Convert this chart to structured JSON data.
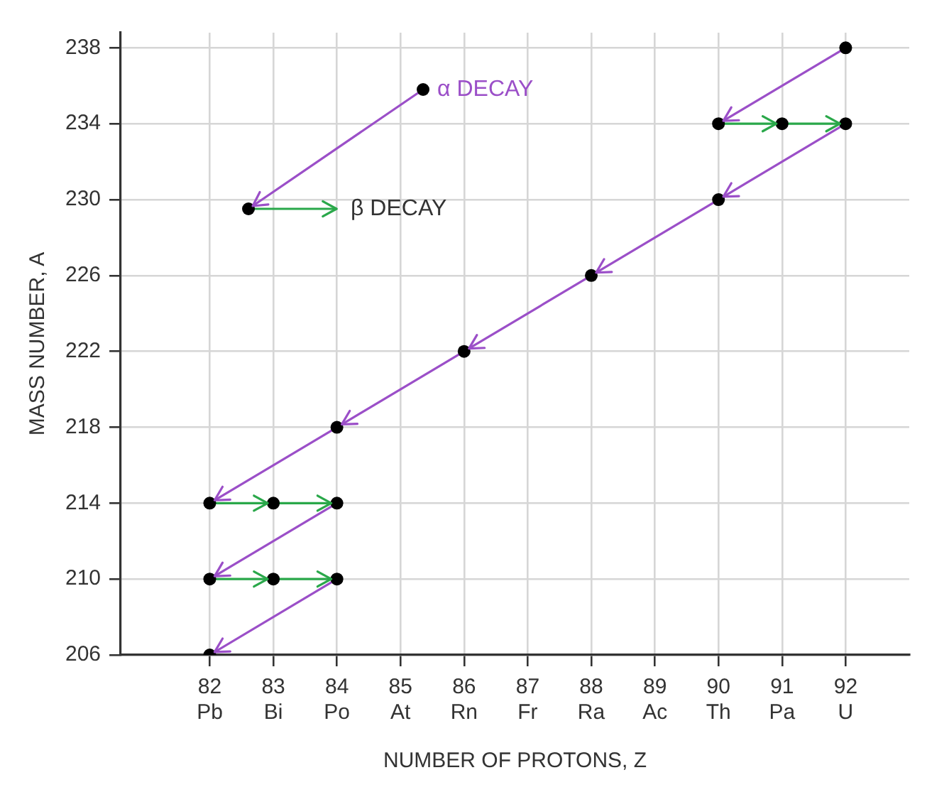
{
  "chart_data": {
    "type": "scatter",
    "xlabel": "NUMBER OF PROTONS, Z",
    "ylabel": "MASS NUMBER, A",
    "xlim": [
      80.6,
      93
    ],
    "ylim": [
      206,
      238.8
    ],
    "xticks": [
      {
        "value": 82,
        "label": "82\nPb"
      },
      {
        "value": 83,
        "label": "83\nBi"
      },
      {
        "value": 84,
        "label": "84\nPo"
      },
      {
        "value": 85,
        "label": "85\nAt"
      },
      {
        "value": 86,
        "label": "86\nRn"
      },
      {
        "value": 87,
        "label": "87\nFr"
      },
      {
        "value": 88,
        "label": "88\nRa"
      },
      {
        "value": 89,
        "label": "89\nAc"
      },
      {
        "value": 90,
        "label": "90\nTh"
      },
      {
        "value": 91,
        "label": "91\nPa"
      },
      {
        "value": 92,
        "label": "92\nU"
      }
    ],
    "yticks": [
      206,
      210,
      214,
      218,
      222,
      226,
      230,
      234,
      238
    ],
    "grid": true,
    "legend": "top left",
    "series": [
      {
        "type": "line",
        "name": "α DECAY",
        "color": "#9b4fc8",
        "marker": "none",
        "x": [
          92,
          90
        ],
        "values": [
          238,
          234
        ]
      },
      {
        "type": "line",
        "color": "#9b4fc8",
        "marker": "none",
        "x": [
          92,
          90,
          88,
          86,
          84,
          82
        ],
        "values": [
          234,
          230,
          226,
          222,
          218,
          214
        ]
      },
      {
        "type": "line",
        "color": "#9b4fc8",
        "marker": "none",
        "x": [
          84,
          82
        ],
        "values": [
          214,
          210
        ]
      },
      {
        "type": "line",
        "color": "#9b4fc8",
        "marker": "none",
        "x": [
          84,
          82
        ],
        "values": [
          210,
          206
        ]
      },
      {
        "type": "line",
        "name": "β DECAY",
        "color": "#2aa84a",
        "marker": "none",
        "x": [
          90,
          91,
          92
        ],
        "values": [
          234,
          234,
          234
        ]
      },
      {
        "type": "line",
        "color": "#2aa84a",
        "marker": "none",
        "x": [
          82,
          83,
          84
        ],
        "values": [
          214,
          214,
          214
        ]
      },
      {
        "type": "line",
        "color": "#2aa84a",
        "marker": "none",
        "x": [
          82,
          83,
          84
        ],
        "values": [
          210,
          210,
          210
        ]
      },
      {
        "type": "scatter",
        "color": "#000000",
        "marker": "circle",
        "x": [
          92,
          90,
          91,
          92,
          90,
          88,
          86,
          84,
          82,
          83,
          84,
          82,
          83,
          84,
          82
        ],
        "values": [
          238,
          234,
          234,
          234,
          230,
          226,
          222,
          218,
          214,
          214,
          214,
          210,
          210,
          210,
          206
        ]
      }
    ]
  }
}
